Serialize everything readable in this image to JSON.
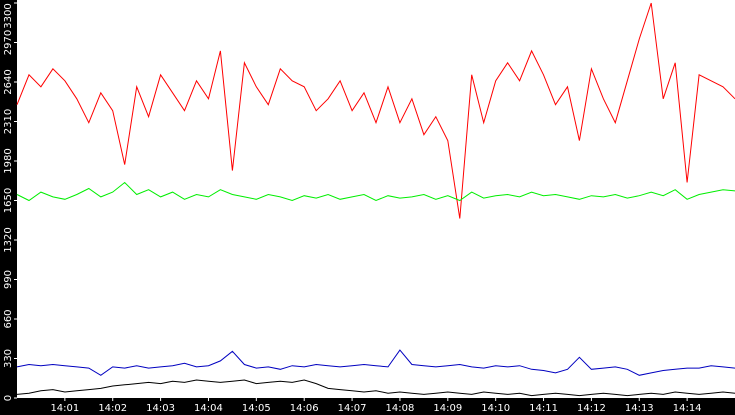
{
  "chart_data": {
    "type": "line",
    "x": [
      840,
      840.25,
      840.5,
      840.75,
      841,
      841.25,
      841.5,
      841.75,
      842,
      842.25,
      842.5,
      842.75,
      843,
      843.25,
      843.5,
      843.75,
      844,
      844.25,
      844.5,
      844.75,
      845,
      845.25,
      845.5,
      845.75,
      846,
      846.25,
      846.5,
      846.75,
      847,
      847.25,
      847.5,
      847.75,
      848,
      848.25,
      848.5,
      848.75,
      849,
      849.25,
      849.5,
      849.75,
      850,
      850.25,
      850.5,
      850.75,
      851,
      851.25,
      851.5,
      851.75,
      852,
      852.25,
      852.5,
      852.75,
      853,
      853.25,
      853.5,
      853.75,
      854,
      854.25,
      854.5,
      854.75,
      855
    ],
    "series": [
      {
        "color": "#ff0000",
        "values": [
          2450,
          2700,
          2600,
          2750,
          2650,
          2500,
          2300,
          2550,
          2400,
          1950,
          2600,
          2350,
          2700,
          2550,
          2400,
          2650,
          2500,
          2900,
          1900,
          2800,
          2600,
          2450,
          2750,
          2650,
          2600,
          2400,
          2500,
          2650,
          2400,
          2550,
          2300,
          2600,
          2300,
          2500,
          2200,
          2350,
          2150,
          1500,
          2700,
          2300,
          2650,
          2800,
          2650,
          2900,
          2700,
          2450,
          2600,
          2150,
          2750,
          2500,
          2300,
          2650,
          3000,
          3300,
          2500,
          2800,
          1800,
          2700,
          2650,
          2600,
          2500
        ]
      },
      {
        "color": "#00ee00",
        "values": [
          1700,
          1650,
          1720,
          1680,
          1660,
          1700,
          1750,
          1680,
          1720,
          1800,
          1700,
          1740,
          1680,
          1720,
          1660,
          1700,
          1680,
          1740,
          1700,
          1680,
          1660,
          1700,
          1680,
          1650,
          1690,
          1670,
          1700,
          1660,
          1680,
          1700,
          1650,
          1690,
          1670,
          1680,
          1700,
          1660,
          1690,
          1650,
          1720,
          1670,
          1690,
          1700,
          1680,
          1720,
          1690,
          1700,
          1680,
          1660,
          1690,
          1680,
          1700,
          1670,
          1690,
          1720,
          1690,
          1740,
          1660,
          1700,
          1720,
          1740,
          1730
        ]
      },
      {
        "color": "#0000c0",
        "values": [
          260,
          280,
          270,
          280,
          270,
          260,
          250,
          190,
          260,
          250,
          270,
          250,
          260,
          270,
          290,
          260,
          270,
          310,
          390,
          280,
          250,
          260,
          240,
          270,
          260,
          280,
          270,
          260,
          270,
          280,
          270,
          260,
          400,
          280,
          270,
          260,
          270,
          280,
          260,
          250,
          270,
          260,
          270,
          240,
          230,
          210,
          240,
          340,
          240,
          250,
          260,
          240,
          190,
          210,
          230,
          240,
          250,
          250,
          270,
          260,
          250
        ]
      },
      {
        "color": "#000000",
        "values": [
          30,
          40,
          60,
          70,
          50,
          60,
          70,
          80,
          100,
          110,
          120,
          130,
          120,
          140,
          130,
          150,
          140,
          130,
          140,
          150,
          120,
          130,
          140,
          130,
          150,
          120,
          80,
          70,
          60,
          50,
          60,
          40,
          50,
          40,
          30,
          40,
          50,
          40,
          30,
          50,
          40,
          30,
          40,
          20,
          30,
          40,
          30,
          20,
          30,
          40,
          30,
          20,
          30,
          40,
          30,
          50,
          40,
          30,
          40,
          50,
          40
        ]
      }
    ],
    "xlim": [
      840,
      855
    ],
    "xticks": [
      {
        "value": 841,
        "label": "14:01"
      },
      {
        "value": 842,
        "label": "14:02"
      },
      {
        "value": 843,
        "label": "14:03"
      },
      {
        "value": 844,
        "label": "14:04"
      },
      {
        "value": 845,
        "label": "14:05"
      },
      {
        "value": 846,
        "label": "14:06"
      },
      {
        "value": 847,
        "label": "14:07"
      },
      {
        "value": 848,
        "label": "14:08"
      },
      {
        "value": 849,
        "label": "14:09"
      },
      {
        "value": 850,
        "label": "14:10"
      },
      {
        "value": 851,
        "label": "14:11"
      },
      {
        "value": 852,
        "label": "14:12"
      },
      {
        "value": 853,
        "label": "14:13"
      },
      {
        "value": 854,
        "label": "14:14"
      }
    ],
    "ylim": [
      0,
      3325
    ],
    "yticks": [
      0,
      330,
      660,
      990,
      1320,
      1650,
      1980,
      2310,
      2640,
      2970,
      3300
    ]
  }
}
